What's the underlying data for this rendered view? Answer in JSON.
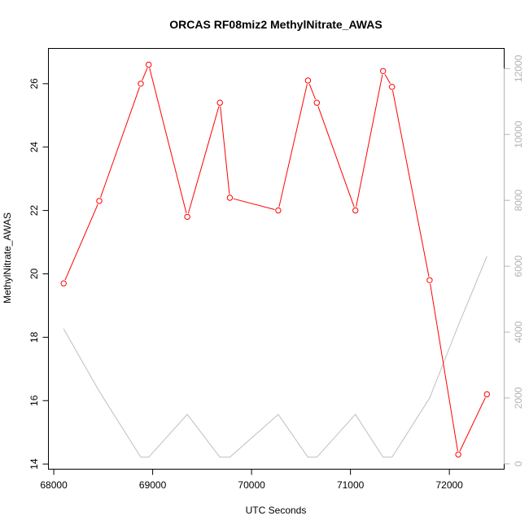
{
  "chart_data": {
    "type": "line",
    "title": "ORCAS RF08miz2 MethylNitrate_AWAS",
    "xlabel": "UTC Seconds",
    "ylabel": "MethylNitrate_AWAS",
    "xlim": [
      67950,
      72550
    ],
    "ylim": [
      13.85,
      27.1
    ],
    "y2lim": [
      -150,
      12600
    ],
    "x_ticks": [
      68000,
      69000,
      70000,
      71000,
      72000
    ],
    "y_ticks": [
      14,
      16,
      18,
      20,
      22,
      24,
      26
    ],
    "y2_ticks": [
      0,
      2000,
      4000,
      6000,
      8000,
      10000,
      12000
    ],
    "grid": false,
    "colors": {
      "primary": "#ff0000",
      "secondary": "#bebebe",
      "right_axis": "#b3b3b3",
      "axis": "#000000"
    },
    "series": [
      {
        "axis": "left",
        "marker": "open-circle",
        "x": [
          68100,
          68460,
          68880,
          68960,
          69350,
          69680,
          69780,
          70270,
          70570,
          70660,
          71050,
          71330,
          71420,
          71800,
          72090,
          72380
        ],
        "y": [
          19.7,
          22.3,
          26.0,
          26.6,
          21.8,
          25.4,
          22.4,
          22.0,
          26.1,
          25.4,
          22.0,
          26.4,
          25.9,
          19.8,
          14.3,
          16.2
        ]
      },
      {
        "axis": "right",
        "marker": "none",
        "x": [
          68100,
          68460,
          68880,
          68960,
          69350,
          69680,
          69780,
          70270,
          70570,
          70660,
          71050,
          71330,
          71420,
          71800,
          72090,
          72380
        ],
        "y": [
          4100,
          2200,
          200,
          200,
          1500,
          200,
          200,
          1500,
          200,
          200,
          1500,
          200,
          200,
          2000,
          4200,
          6300
        ]
      }
    ]
  }
}
